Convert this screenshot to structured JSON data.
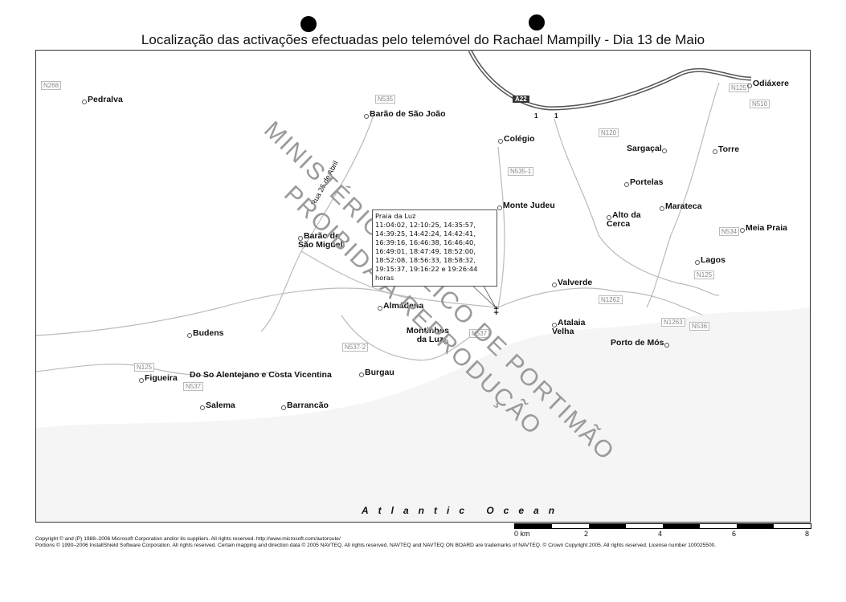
{
  "title": "Localização das activações efectuadas pelo telemóvel do Rachael Mampilly - Dia 13 de Maio",
  "places": [
    "Pedralva",
    "Barão de São João",
    "Colégio",
    "Sargaçal",
    "Torre",
    "Odiáxere",
    "Portelas",
    "Monte Judeu",
    "Marateca",
    "Alto da Cerca",
    "Meia Praia",
    "Barão de São Miguel",
    "Lagos",
    "Valverde",
    "Almádena",
    "Atalaia Velha",
    "Budens",
    "Montinhos da Luz",
    "Porto de Mós",
    "Burgau",
    "Figueira",
    "Do So Alentejano e Costa Vicentina",
    "Salema",
    "Barrancão"
  ],
  "roads": [
    "N268",
    "N535",
    "N120",
    "N535-1",
    "N125",
    "N510",
    "N534",
    "N125",
    "N1262",
    "N1263",
    "N536",
    "N537",
    "N537-2",
    "N125",
    "N537"
  ],
  "motorway": {
    "name": "A22",
    "exits": [
      "1",
      "1"
    ]
  },
  "street_label": "Rua 25 de Abril",
  "callout": {
    "place": "Praia da Luz",
    "lines": [
      "11:04:02, 12:10:25, 14:35:57,",
      "14:39:25, 14:42:24, 14:42:41,",
      "16:39:16, 16:46:38, 16:46:40,",
      "16:49:01, 18:47:49, 18:52:00,",
      "18:52:08, 18:56:33, 18:58:32,",
      "19:15:37, 19:16:22 e 19:26:44",
      "horas"
    ],
    "marker_icon": "cell-tower-pin-icon"
  },
  "ocean": "Atlantic Ocean",
  "watermark": [
    "MINISTÉRIO PÚBLICO DE PORTIMÃO",
    "PROIBIDA A REPRODUÇÃO"
  ],
  "scale": {
    "labels": [
      "0 km",
      "2",
      "4",
      "6",
      "8"
    ]
  },
  "footer": [
    "Copyright © and (P) 1988–2006 Microsoft Corporation and/or its suppliers. All rights reserved. http://www.microsoft.com/autoroute/",
    "Portions © 1990–2006 InstallShield Software Corporation. All rights reserved. Certain mapping and direction data © 2005 NAVTEQ. All rights reserved. NAVTEQ and NAVTEQ ON BOARD are trademarks of NAVTEQ. © Crown Copyright 2005. All rights reserved. License number 100025500."
  ]
}
